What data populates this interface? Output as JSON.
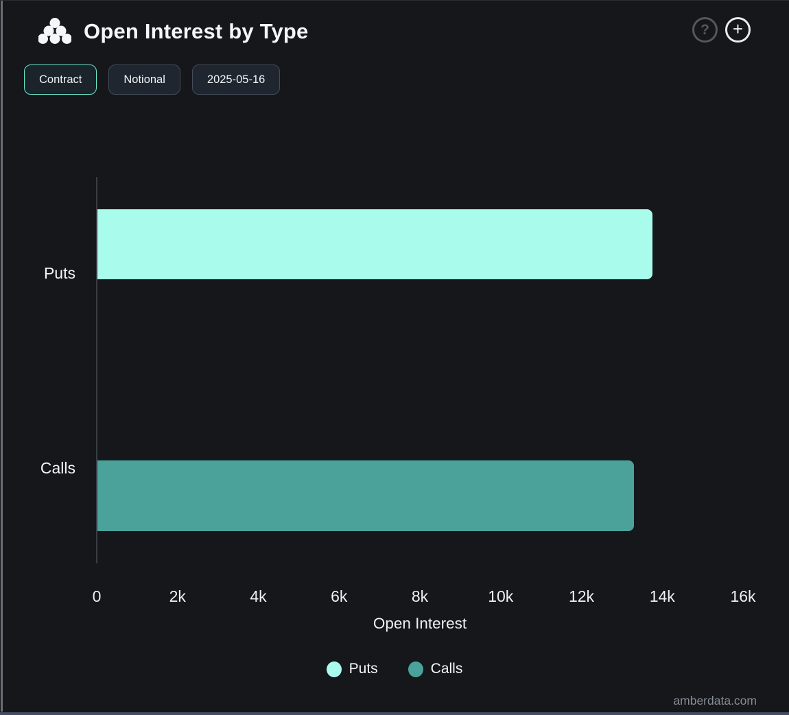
{
  "header": {
    "title": "Open Interest by Type",
    "help_label": "?",
    "add_label": "+"
  },
  "toolbar": {
    "contract_label": "Contract",
    "notional_label": "Notional",
    "date_label": "2025-05-16"
  },
  "chart_data": {
    "type": "bar",
    "orientation": "horizontal",
    "title": "Open Interest by Type",
    "categories": [
      "Puts",
      "Calls"
    ],
    "values": [
      13740,
      13280
    ],
    "colors": [
      "#a9fbec",
      "#4aa29b"
    ],
    "xlabel": "Open Interest",
    "xlim": [
      0,
      16000
    ],
    "x_ticks": [
      "0",
      "2k",
      "4k",
      "6k",
      "8k",
      "10k",
      "12k",
      "14k",
      "16k"
    ],
    "legend": [
      "Puts",
      "Calls"
    ],
    "legend_position": "bottom",
    "grid": false,
    "background": "#16171b"
  },
  "footer": {
    "watermark": "amberdata.com"
  }
}
